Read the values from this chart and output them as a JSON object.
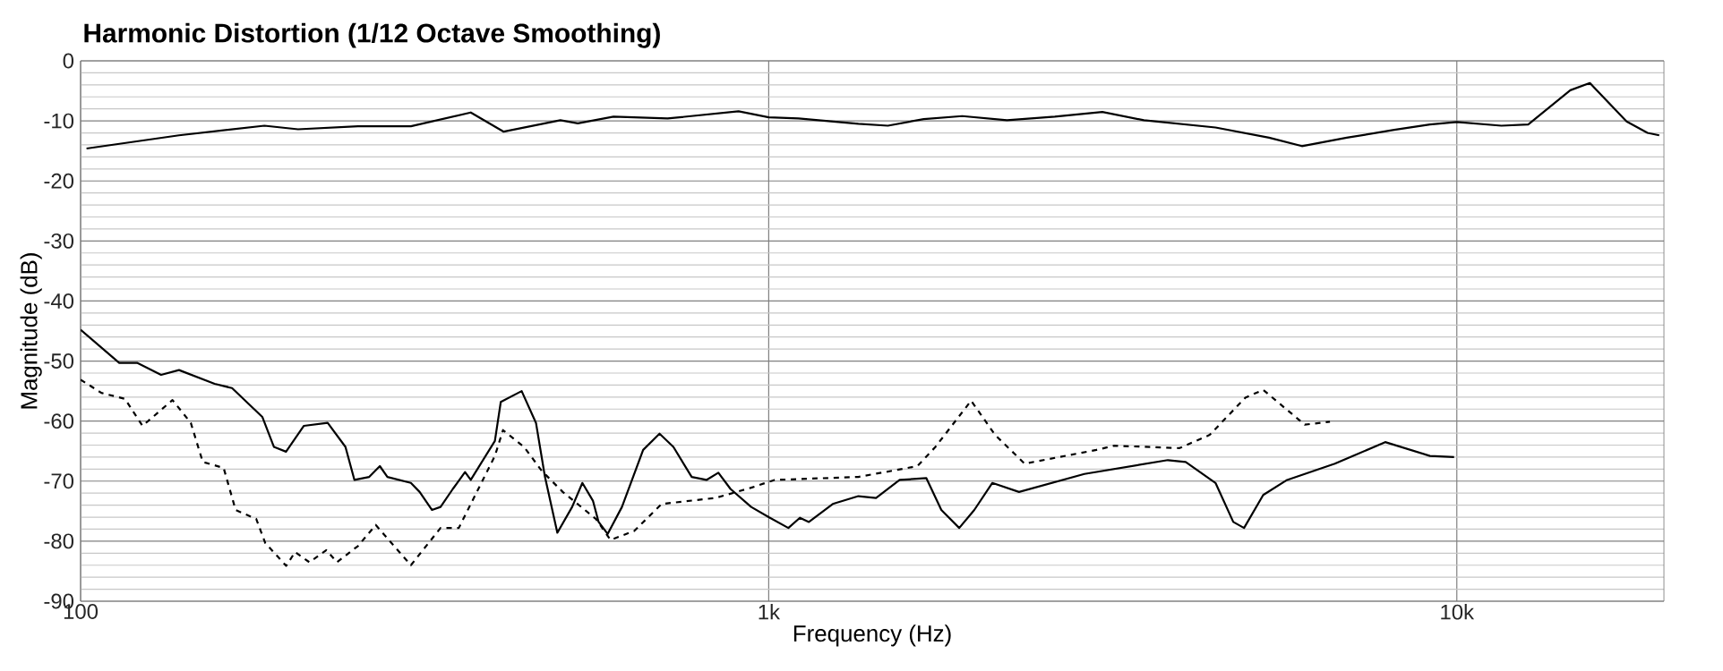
{
  "chart_data": {
    "type": "line",
    "title": "Harmonic Distortion (1/12 Octave Smoothing)",
    "xlabel": "Frequency (Hz)",
    "ylabel": "Magnitude (dB)",
    "log": "x",
    "grid": true,
    "marker": "none",
    "xlim": [
      100,
      20000
    ],
    "xticks": [
      {
        "value": 100,
        "label": "100"
      },
      {
        "value": 1000,
        "label": "1k"
      },
      {
        "value": 10000,
        "label": "10k"
      }
    ],
    "ylim": [
      -90,
      0
    ],
    "yticks": [
      0,
      -10,
      -20,
      -30,
      -40,
      -50,
      -60,
      -70,
      -80,
      -90
    ],
    "series": [
      {
        "color": "#000000",
        "line_style": "solid",
        "x": [
          102,
          139,
          185,
          207,
          253,
          302,
          369,
          412,
          498,
          528,
          595,
          713,
          904,
          1000,
          1105,
          1350,
          1490,
          1680,
          1911,
          2220,
          2605,
          3054,
          3510,
          4460,
          5335,
          5955,
          6920,
          8110,
          9140,
          10000,
          11610,
          12700,
          14620,
          15610,
          17650,
          18930,
          19690
        ],
        "values": [
          -14.6,
          -12.4,
          -10.8,
          -11.4,
          -10.9,
          -10.9,
          -8.6,
          -11.8,
          -9.9,
          -10.4,
          -9.3,
          -9.6,
          -8.4,
          -9.4,
          -9.6,
          -10.5,
          -10.8,
          -9.7,
          -9.2,
          -9.9,
          -9.3,
          -8.5,
          -9.9,
          -11.1,
          -12.8,
          -14.2,
          -12.8,
          -11.5,
          -10.6,
          -10.2,
          -10.8,
          -10.6,
          -4.9,
          -3.7,
          -10.1,
          -12,
          -12.4
        ]
      },
      {
        "color": "#000000",
        "line_style": "solid",
        "x": [
          100,
          113.8,
          120.8,
          130.9,
          139,
          156.6,
          166,
          183.7,
          191,
          198.9,
          211,
          228.6,
          242.6,
          250,
          262.7,
          272.2,
          279.2,
          302,
          311,
          324,
          333.5,
          347.5,
          362,
          369,
          400,
          408,
          437.5,
          459,
          473,
          493,
          518,
          536,
          555.5,
          566,
          583.5,
          612,
          657,
          694,
          727,
          773,
          812,
          845,
          880,
          943,
          1000,
          1068,
          1110,
          1144,
          1239,
          1350,
          1432,
          1550,
          1695,
          1782,
          1892,
          1990,
          2113,
          2311,
          2876,
          3803,
          4036,
          4460,
          4733,
          4907,
          5232,
          5668,
          6650,
          7870,
          9140,
          9910
        ],
        "values": [
          -44.8,
          -50.3,
          -50.3,
          -52.3,
          -51.5,
          -53.8,
          -54.5,
          -59.3,
          -64.3,
          -65.1,
          -60.8,
          -60.3,
          -64.3,
          -69.8,
          -69.3,
          -67.5,
          -69.3,
          -70.3,
          -71.8,
          -74.8,
          -74.3,
          -71.3,
          -68.5,
          -69.8,
          -63.3,
          -56.8,
          -55,
          -60.3,
          -69.3,
          -78.6,
          -74.3,
          -70.3,
          -73.3,
          -76.8,
          -78.8,
          -74.3,
          -64.8,
          -62.1,
          -64.3,
          -69.3,
          -69.8,
          -68.6,
          -71.3,
          -74.3,
          -76,
          -77.8,
          -76.1,
          -76.8,
          -73.8,
          -72.5,
          -72.8,
          -69.8,
          -69.5,
          -74.8,
          -77.8,
          -74.8,
          -70.3,
          -71.8,
          -68.8,
          -66.5,
          -66.8,
          -70.3,
          -76.8,
          -77.8,
          -72.3,
          -69.8,
          -67.1,
          -63.5,
          -65.8,
          -66
        ]
      },
      {
        "color": "#000000",
        "line_style": "dashed",
        "x": [
          100,
          107.2,
          116,
          123,
          136,
          144.6,
          150.5,
          161.4,
          168,
          180,
          185.5,
          199,
          205,
          215,
          227.6,
          235.8,
          253,
          268.5,
          302,
          333.5,
          354.5,
          400,
          411,
          441,
          468,
          502,
          561,
          589,
          637.6,
          699,
          837,
          943,
          1020,
          1350,
          1645,
          1747,
          1969,
          2133,
          2355,
          2994,
          3177,
          3955,
          4374,
          4928,
          5232,
          6013,
          6541
        ],
        "values": [
          -53.1,
          -55.3,
          -56.3,
          -60.8,
          -56.5,
          -60.3,
          -66.8,
          -67.8,
          -74.8,
          -76.3,
          -80.3,
          -84.1,
          -81.8,
          -83.5,
          -81.5,
          -83.5,
          -80.8,
          -77.3,
          -84,
          -77.8,
          -77.8,
          -65.8,
          -61.5,
          -64.3,
          -68.3,
          -71.8,
          -76.3,
          -79.8,
          -78.3,
          -73.8,
          -72.8,
          -71.1,
          -69.8,
          -69.3,
          -67.5,
          -64.3,
          -56.6,
          -62.3,
          -67.1,
          -64.8,
          -64.1,
          -64.5,
          -62.3,
          -56.1,
          -54.8,
          -60.6,
          -60.1
        ]
      }
    ]
  }
}
